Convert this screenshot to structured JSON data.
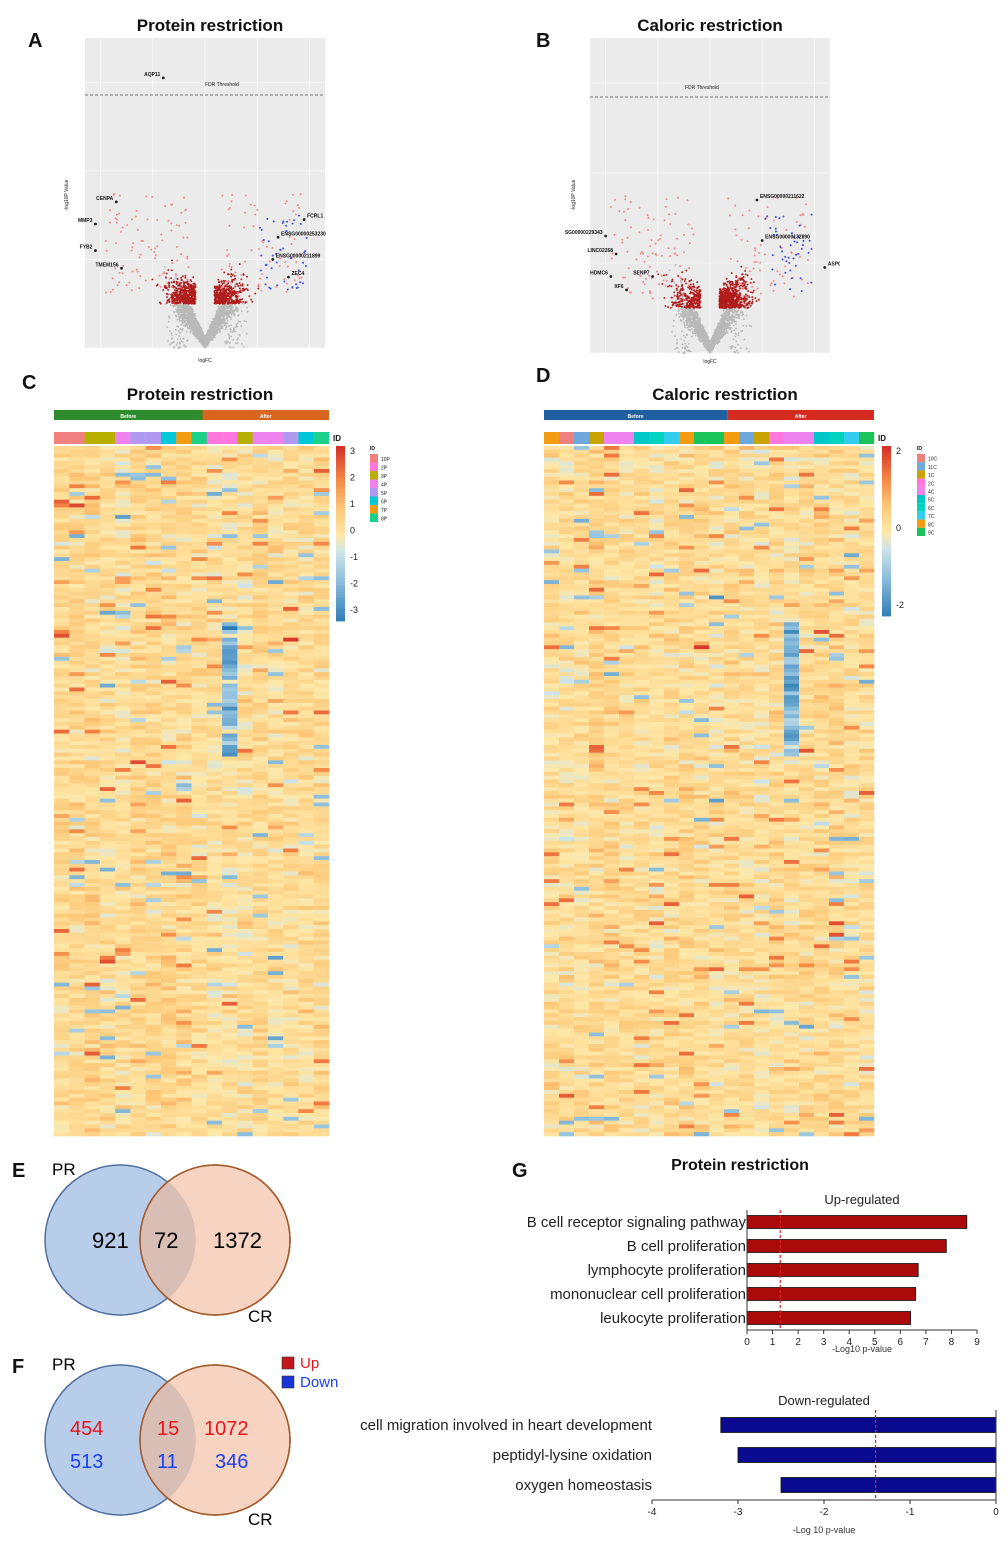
{
  "panels": {
    "a": {
      "letter": "A",
      "title": "Protein restriction"
    },
    "b": {
      "letter": "B",
      "title": "Caloric restriction"
    },
    "c": {
      "letter": "C",
      "title": "Protein restriction"
    },
    "d": {
      "letter": "D",
      "title": "Caloric restriction"
    },
    "e": {
      "letter": "E"
    },
    "f": {
      "letter": "F"
    },
    "g": {
      "letter": "G",
      "title": "Protein restriction"
    }
  },
  "volcano_common": {
    "threshold_label": "FDR Threshold",
    "xlabel": "logFC",
    "ylabel": "-log10P Value"
  },
  "heatmap_common": {
    "legend_title": "ID",
    "scale_c": [
      "3",
      "2",
      "1",
      "0",
      "-1",
      "-2",
      "-3"
    ],
    "scale_d": [
      "2",
      "0",
      "-2"
    ]
  },
  "heatmaps": {
    "c": {
      "groups": [
        {
          "label": "Before",
          "color": "#2e8b2e"
        },
        {
          "label": "After",
          "color": "#d9661f"
        }
      ],
      "ids": [
        "10P",
        "2P",
        "3P",
        "4P",
        "5P",
        "6P",
        "7P",
        "8P"
      ],
      "id_colors": [
        "#f08080",
        "#ff77dd",
        "#b8b000",
        "#ee82ee",
        "#b09af0",
        "#00c8d8",
        "#f39c12",
        "#1bd18a"
      ]
    },
    "d": {
      "groups": [
        {
          "label": "Before",
          "color": "#1f5fa0"
        },
        {
          "label": "After",
          "color": "#d42a1f"
        }
      ],
      "ids": [
        "10C",
        "11C",
        "1C",
        "2C",
        "4C",
        "5C",
        "6C",
        "7C",
        "8C",
        "9C"
      ],
      "id_colors": [
        "#f08080",
        "#6fa8dc",
        "#c9a400",
        "#ff77dd",
        "#ee82ee",
        "#00c8c8",
        "#00d4c0",
        "#33ccee",
        "#f39c12",
        "#1bc45a"
      ]
    }
  },
  "venn_e": {
    "left_label": "PR",
    "right_label": "CR",
    "left_only": "921",
    "overlap": "72",
    "right_only": "1372"
  },
  "venn_f": {
    "left_label": "PR",
    "right_label": "CR",
    "left_up": "454",
    "left_down": "513",
    "overlap_up": "15",
    "overlap_down": "11",
    "right_up": "1072",
    "right_down": "346",
    "legend_up": "Up",
    "legend_down": "Down",
    "up_color": "#e8141b",
    "down_color": "#1a3ff0"
  },
  "chart_data": [
    {
      "type": "scatter",
      "title": "Protein restriction",
      "xlabel": "logFC",
      "ylabel": "-log10P Value",
      "threshold_label": "FDR Threshold",
      "labeled_genes": [
        {
          "name": "AQP11",
          "x": -0.8,
          "y": 6.1
        },
        {
          "name": "CENPA",
          "x": -1.7,
          "y": 3.3
        },
        {
          "name": "MMP3",
          "x": -2.1,
          "y": 2.8
        },
        {
          "name": "FYB2",
          "x": -2.1,
          "y": 2.2
        },
        {
          "name": "TMEM156",
          "x": -1.6,
          "y": 1.8
        },
        {
          "name": "FCRL1",
          "x": 1.9,
          "y": 2.9
        },
        {
          "name": "ENSG00000253230",
          "x": 1.4,
          "y": 2.5
        },
        {
          "name": "ENSG00000211899",
          "x": 1.3,
          "y": 2.0
        },
        {
          "name": "ZEC4",
          "x": 1.6,
          "y": 1.6
        }
      ]
    },
    {
      "type": "scatter",
      "title": "Caloric restriction",
      "xlabel": "logFC",
      "ylabel": "-log10P Value",
      "threshold_label": "FDR Threshold",
      "labeled_genes": [
        {
          "name": "ENSG00000211622",
          "x": 0.9,
          "y": 3.4
        },
        {
          "name": "ENSG00000229343",
          "x": -2.0,
          "y": 2.6
        },
        {
          "name": "ENSG00000132890",
          "x": 1.0,
          "y": 2.5
        },
        {
          "name": "LINC02268",
          "x": -1.8,
          "y": 2.2
        },
        {
          "name": "HDMC6",
          "x": -1.9,
          "y": 1.7
        },
        {
          "name": "SENP7",
          "x": -1.1,
          "y": 1.7
        },
        {
          "name": "XF6",
          "x": -1.6,
          "y": 1.4
        },
        {
          "name": "ASPG",
          "x": 2.2,
          "y": 1.9
        }
      ]
    },
    {
      "type": "bar",
      "orientation": "horizontal",
      "title": "Up-regulated",
      "xlabel": "-Log10 p-value",
      "categories": [
        "B cell receptor signaling pathway",
        "B cell proliferation",
        "lymphocyte proliferation",
        "mononuclear cell proliferation",
        "leukocyte proliferation"
      ],
      "values": [
        8.6,
        7.8,
        6.7,
        6.6,
        6.4
      ],
      "xlim": [
        0,
        9
      ],
      "ticks": [
        0,
        1,
        2,
        3,
        4,
        5,
        6,
        7,
        8,
        9
      ],
      "threshold": 1.3,
      "color": "#aa0a0a"
    },
    {
      "type": "bar",
      "orientation": "horizontal",
      "title": "Down-regulated",
      "xlabel": "-Log 10 p-value",
      "categories": [
        "cell migration involved in heart development",
        "peptidyl-lysine oxidation",
        "oxygen homeostasis"
      ],
      "values": [
        -3.2,
        -3.0,
        -2.5
      ],
      "xlim": [
        -4,
        0
      ],
      "ticks": [
        -4,
        -3,
        -2,
        -1,
        0
      ],
      "threshold": -1.4,
      "color": "#0a0a90"
    }
  ]
}
